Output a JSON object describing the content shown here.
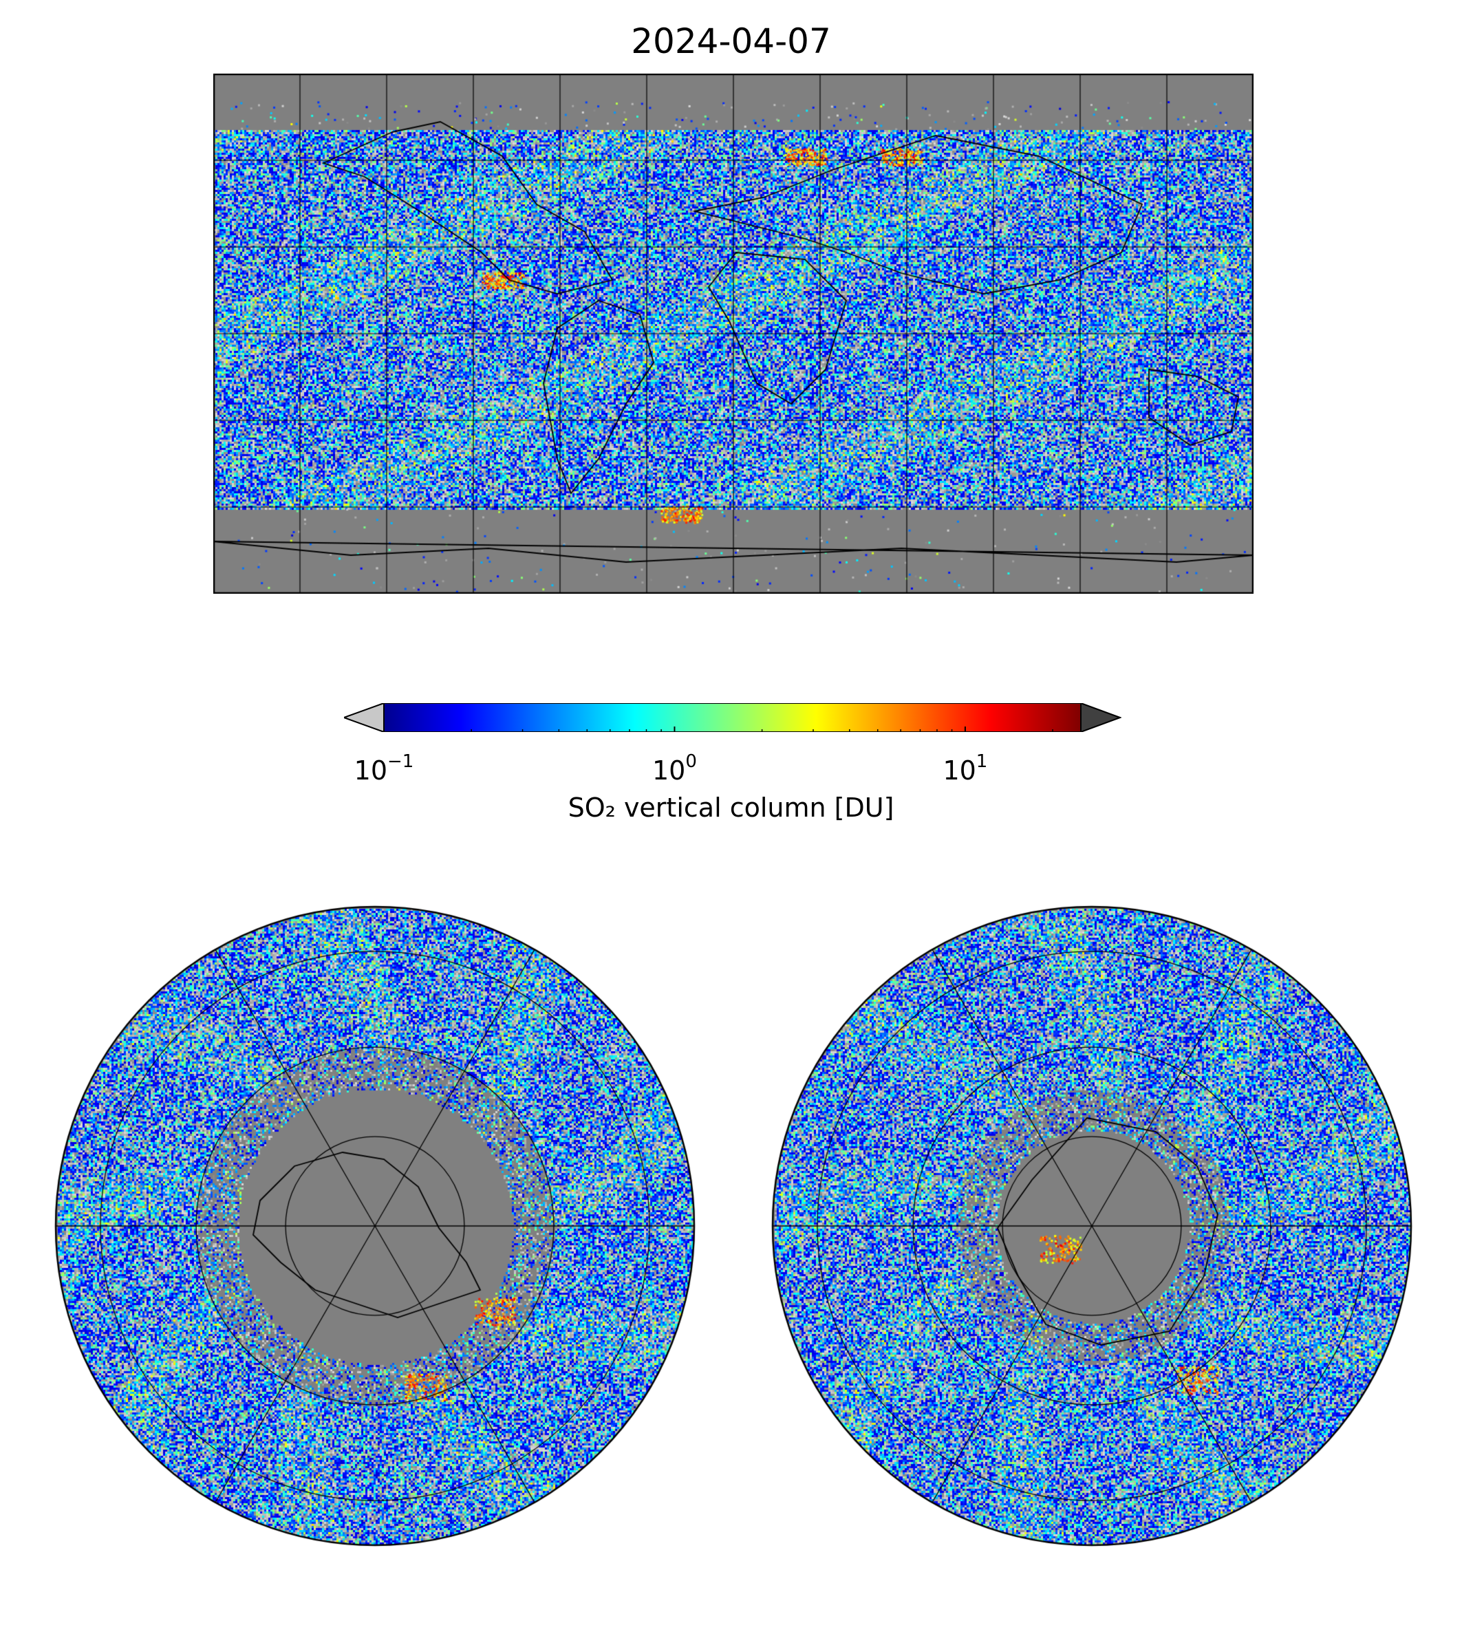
{
  "title": "2024-04-07",
  "colorbar": {
    "label": "SO₂ vertical column [DU]",
    "scale": "log",
    "range": [
      0.1,
      25
    ],
    "extend": "both",
    "under_color": "#c8c8c8",
    "over_color": "#404040",
    "colormap": "jet",
    "ticks": [
      {
        "value": 0.1,
        "base": "10",
        "exp": "−1"
      },
      {
        "value": 1,
        "base": "10",
        "exp": "0"
      },
      {
        "value": 10,
        "base": "10",
        "exp": "1"
      }
    ]
  },
  "colors": {
    "no_data": "#808080",
    "below_range": "#c8c8c8",
    "coastline": "#000000",
    "gridline": "#000000"
  },
  "maps": [
    {
      "name": "global",
      "projection": "plate-carree",
      "gridlines": {
        "lon_step_deg": 30,
        "lat_step_deg": 30
      }
    },
    {
      "name": "north-polar",
      "projection": "north-polar-stereographic"
    },
    {
      "name": "south-polar",
      "projection": "south-polar-stereographic"
    }
  ]
}
